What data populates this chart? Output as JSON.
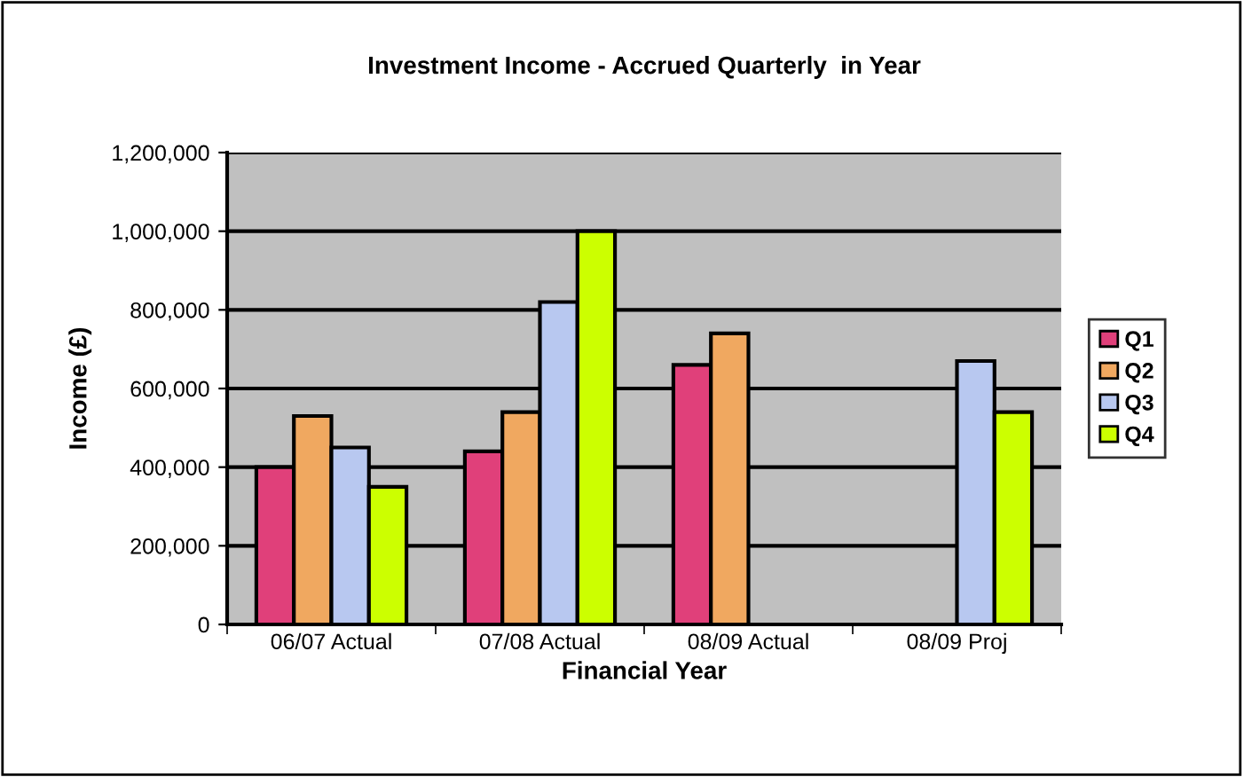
{
  "chart_data": {
    "type": "bar",
    "title": "Investment Income - Accrued Quarterly  in Year",
    "xlabel": "Financial Year",
    "ylabel": "Income (£)",
    "categories": [
      "06/07 Actual",
      "07/08 Actual",
      "08/09 Actual",
      "08/09 Proj"
    ],
    "series": [
      {
        "name": "Q1",
        "color": "#e0407a",
        "values": [
          400000,
          440000,
          660000,
          null
        ]
      },
      {
        "name": "Q2",
        "color": "#f0a860",
        "values": [
          530000,
          540000,
          740000,
          null
        ]
      },
      {
        "name": "Q3",
        "color": "#b8c8f0",
        "values": [
          450000,
          820000,
          null,
          670000
        ]
      },
      {
        "name": "Q4",
        "color": "#ccff00",
        "values": [
          350000,
          1000000,
          null,
          540000
        ]
      }
    ],
    "ylim": [
      0,
      1200000
    ],
    "yticks": [
      {
        "value": 0,
        "label": "0"
      },
      {
        "value": 200000,
        "label": "200,000"
      },
      {
        "value": 400000,
        "label": "400,000"
      },
      {
        "value": 600000,
        "label": "600,000"
      },
      {
        "value": 800000,
        "label": "800,000"
      },
      {
        "value": 1000000,
        "label": "1,000,000"
      },
      {
        "value": 1200000,
        "label": "1,200,000"
      }
    ],
    "grid": "y",
    "legend": "right"
  }
}
